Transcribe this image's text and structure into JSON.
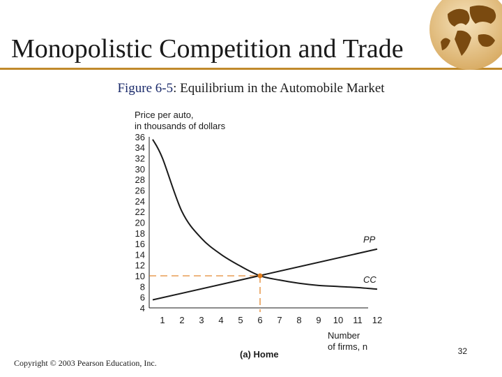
{
  "slide": {
    "title": "Monopolistic Competition and Trade",
    "subtitle_figure": "Figure 6-5",
    "subtitle_text": ": Equilibrium in the Automobile Market",
    "copyright": "Copyright © 2003 Pearson Education, Inc.",
    "page_number": "32"
  },
  "colors": {
    "accent": "#c08a2c",
    "figure_label": "#1a2a6a",
    "curve": "#1a1a1a",
    "equilibrium": "#e07b1a"
  },
  "chart_data": {
    "type": "line",
    "panel_label": "(a) Home",
    "ylabel_line1": "Price per auto,",
    "ylabel_line2": "in thousands of dollars",
    "xlabel_line1": "Number",
    "xlabel_line2": "of firms, n",
    "xlim": [
      0.5,
      12
    ],
    "ylim": [
      4,
      36
    ],
    "x_ticks": [
      1,
      2,
      3,
      4,
      5,
      6,
      7,
      8,
      9,
      10,
      11,
      12
    ],
    "y_ticks": [
      4,
      6,
      8,
      10,
      12,
      14,
      16,
      18,
      20,
      22,
      24,
      26,
      28,
      30,
      32,
      34,
      36
    ],
    "series": [
      {
        "name": "CC",
        "x": [
          0.5,
          1,
          2,
          3,
          4,
          5,
          6,
          7,
          8,
          9,
          10,
          11,
          12
        ],
        "y": [
          35.5,
          32,
          22,
          17,
          14,
          11.8,
          10,
          9.2,
          8.6,
          8.2,
          8,
          7.8,
          7.5
        ]
      },
      {
        "name": "PP",
        "x": [
          0.5,
          12
        ],
        "y": [
          5.5,
          15
        ]
      }
    ],
    "equilibrium": {
      "x": 6,
      "y": 10
    }
  }
}
